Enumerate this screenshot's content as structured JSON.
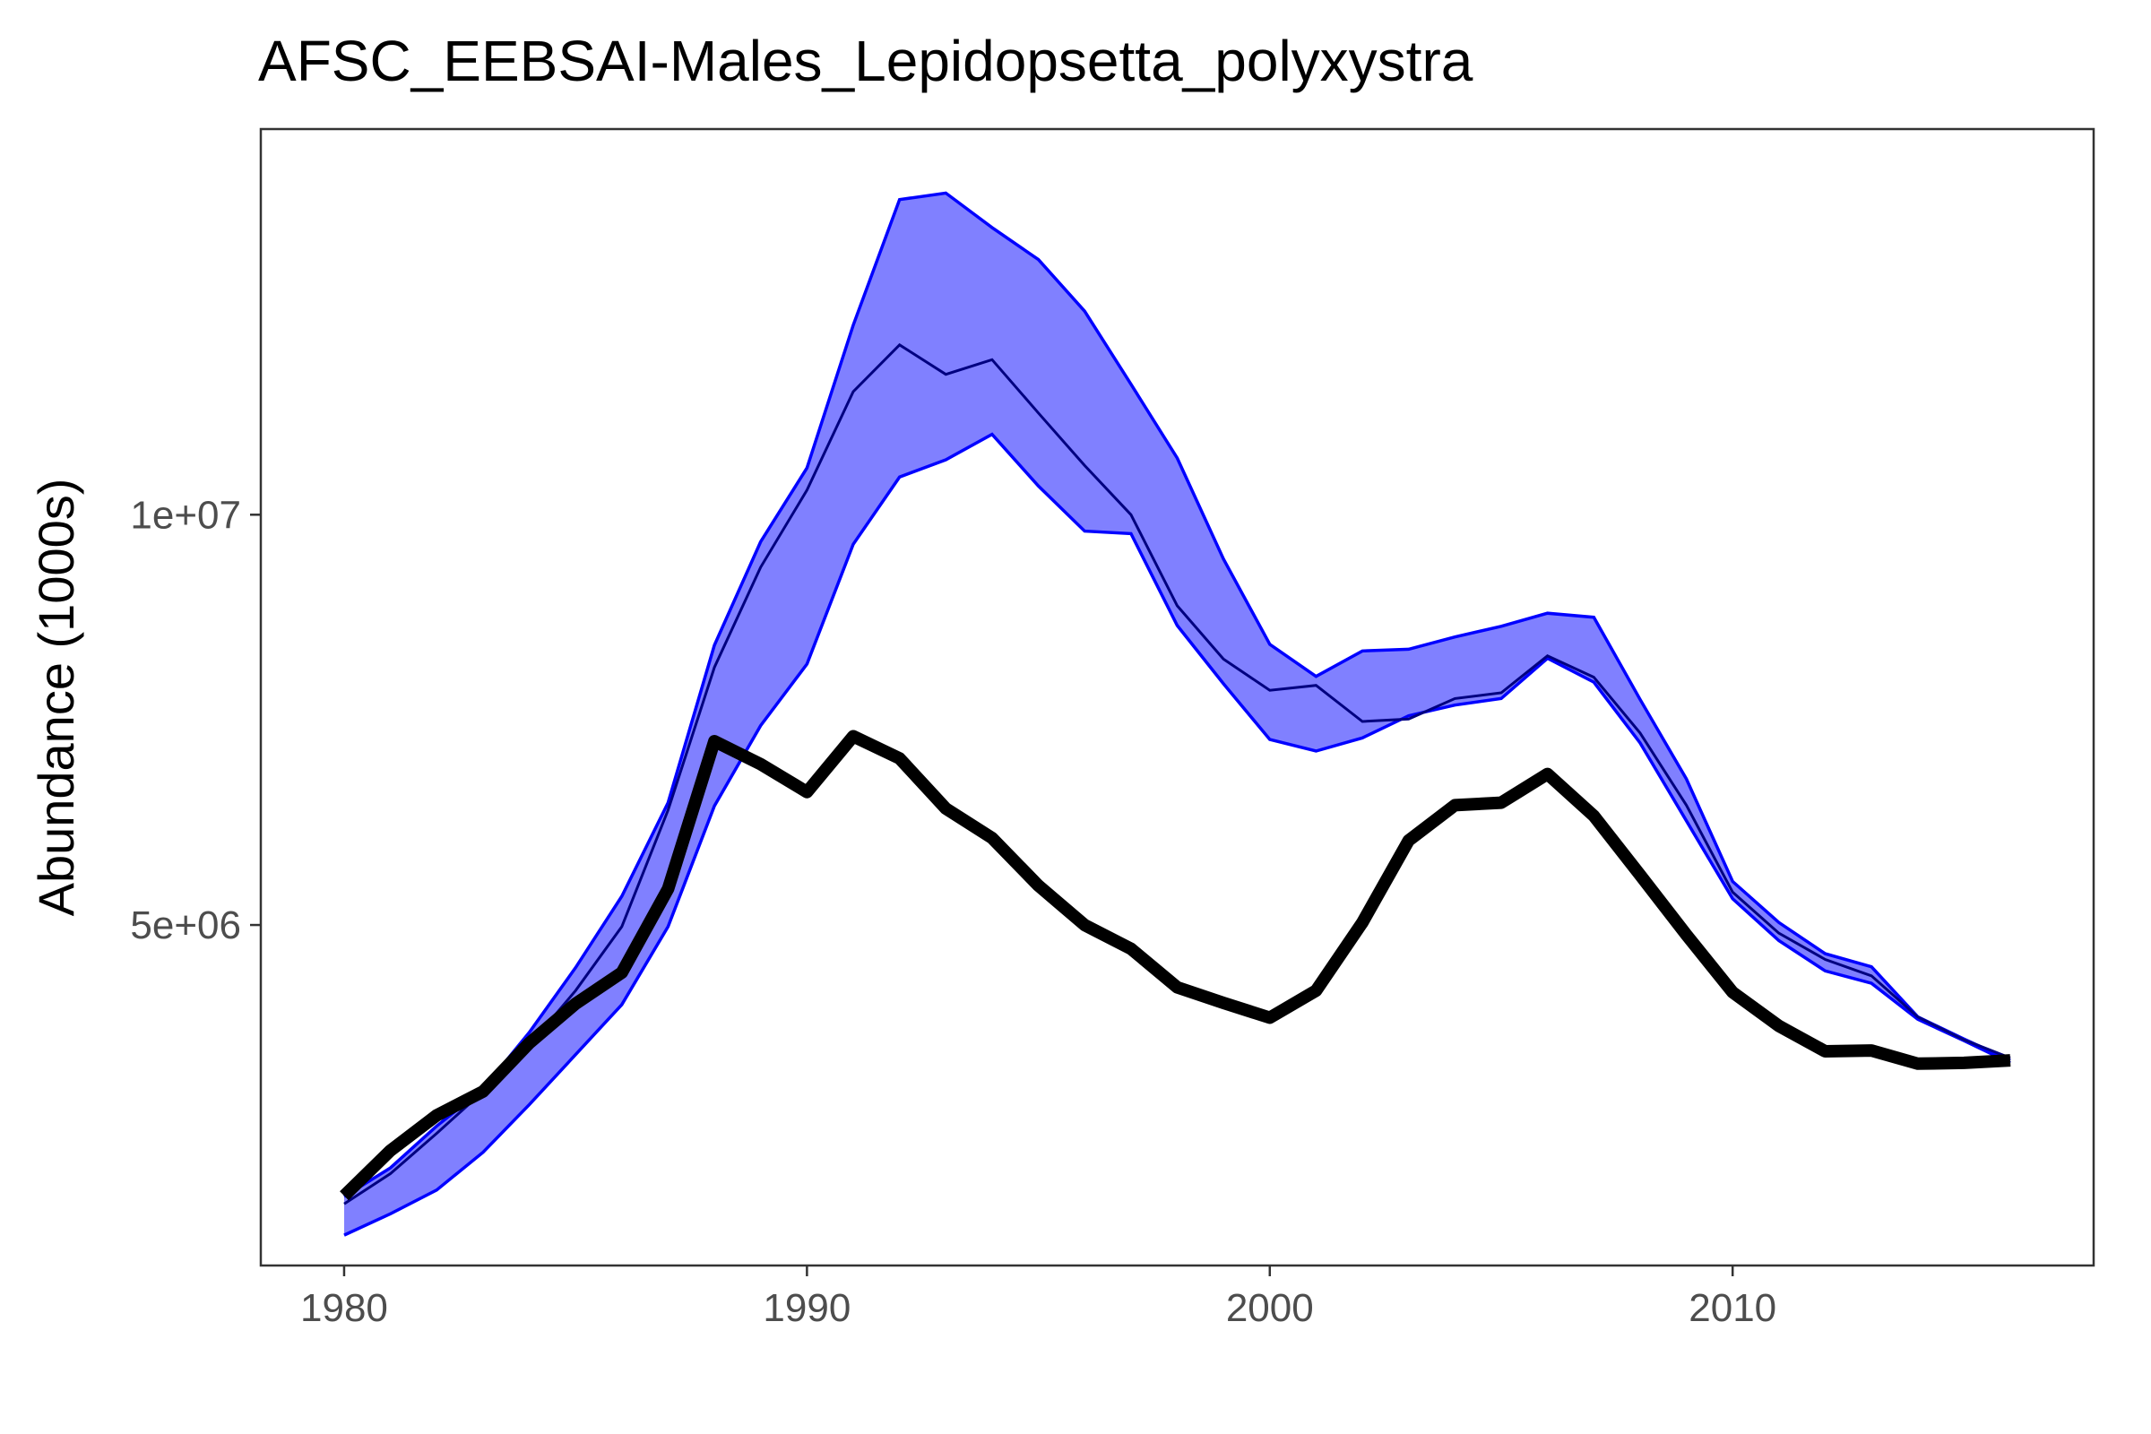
{
  "chart_data": {
    "type": "line",
    "title": "AFSC_EEBSAI-Males_Lepidopsetta_polyxystra",
    "xlabel": "",
    "ylabel": "Abundance (1000s)",
    "xlim": [
      1978.2,
      1982.8
    ],
    "ylim": [
      850000,
      14700000
    ],
    "x_ticks": [
      1980,
      1990,
      2000,
      2010
    ],
    "x_tick_labels": [
      "1980",
      "1990",
      "2000",
      "2010"
    ],
    "y_ticks": [
      5000000,
      10000000
    ],
    "y_tick_labels": [
      "5e+06",
      "1e+07"
    ],
    "grid": false,
    "x": [
      1980,
      1981,
      1982,
      1983,
      1984,
      1985,
      1986,
      1987,
      1988,
      1989,
      1990,
      1991,
      1992,
      1993,
      1994,
      1995,
      1996,
      1997,
      1998,
      1999,
      2000,
      2001,
      2002,
      2003,
      2004,
      2005,
      2006,
      2007,
      2008,
      2009,
      2010,
      2011,
      2012,
      2013,
      2014,
      2015,
      2016
    ],
    "series": [
      {
        "role": "observed",
        "color": "#000000",
        "values": [
          1700000,
          2250000,
          2680000,
          2970000,
          3560000,
          4040000,
          4420000,
          5440000,
          7240000,
          6960000,
          6620000,
          7300000,
          7030000,
          6420000,
          6060000,
          5480000,
          5000000,
          4710000,
          4240000,
          4050000,
          3870000,
          4200000,
          5030000,
          6030000,
          6460000,
          6490000,
          6840000,
          6330000,
          5610000,
          4880000,
          4180000,
          3770000,
          3460000,
          3470000,
          3310000,
          3320000,
          3350000
        ]
      },
      {
        "role": "median",
        "color": "#000080",
        "values": [
          1600000,
          1970000,
          2460000,
          2970000,
          3530000,
          4200000,
          4980000,
          6400000,
          8140000,
          9360000,
          10300000,
          11500000,
          12070000,
          11710000,
          11890000,
          11240000,
          10600000,
          10000000,
          8890000,
          8240000,
          7860000,
          7920000,
          7480000,
          7510000,
          7760000,
          7830000,
          8280000,
          8020000,
          7340000,
          6460000,
          5400000,
          4900000,
          4580000,
          4380000,
          3880000,
          3600000,
          3380000
        ]
      },
      {
        "role": "upper",
        "color": "#0000ff",
        "values": [
          1690000,
          2040000,
          2550000,
          3000000,
          3690000,
          4480000,
          5350000,
          6490000,
          8410000,
          9670000,
          10570000,
          12310000,
          13840000,
          13920000,
          13500000,
          13110000,
          12480000,
          11590000,
          10690000,
          9460000,
          8420000,
          8030000,
          8340000,
          8360000,
          8510000,
          8640000,
          8800000,
          8750000,
          7750000,
          6780000,
          5530000,
          5030000,
          4650000,
          4490000,
          3880000,
          3610000,
          3350000
        ]
      },
      {
        "role": "lower",
        "color": "#0000ff",
        "values": [
          1220000,
          1480000,
          1770000,
          2230000,
          2810000,
          3420000,
          4030000,
          4980000,
          6450000,
          7430000,
          8180000,
          9640000,
          10460000,
          10670000,
          10980000,
          10350000,
          9800000,
          9770000,
          8650000,
          7940000,
          7260000,
          7120000,
          7280000,
          7550000,
          7680000,
          7760000,
          8250000,
          7960000,
          7220000,
          6270000,
          5320000,
          4810000,
          4440000,
          4290000,
          3850000,
          3590000,
          3320000
        ]
      }
    ],
    "band": {
      "fill": "#8080ff",
      "stroke": "#0000ff"
    }
  }
}
